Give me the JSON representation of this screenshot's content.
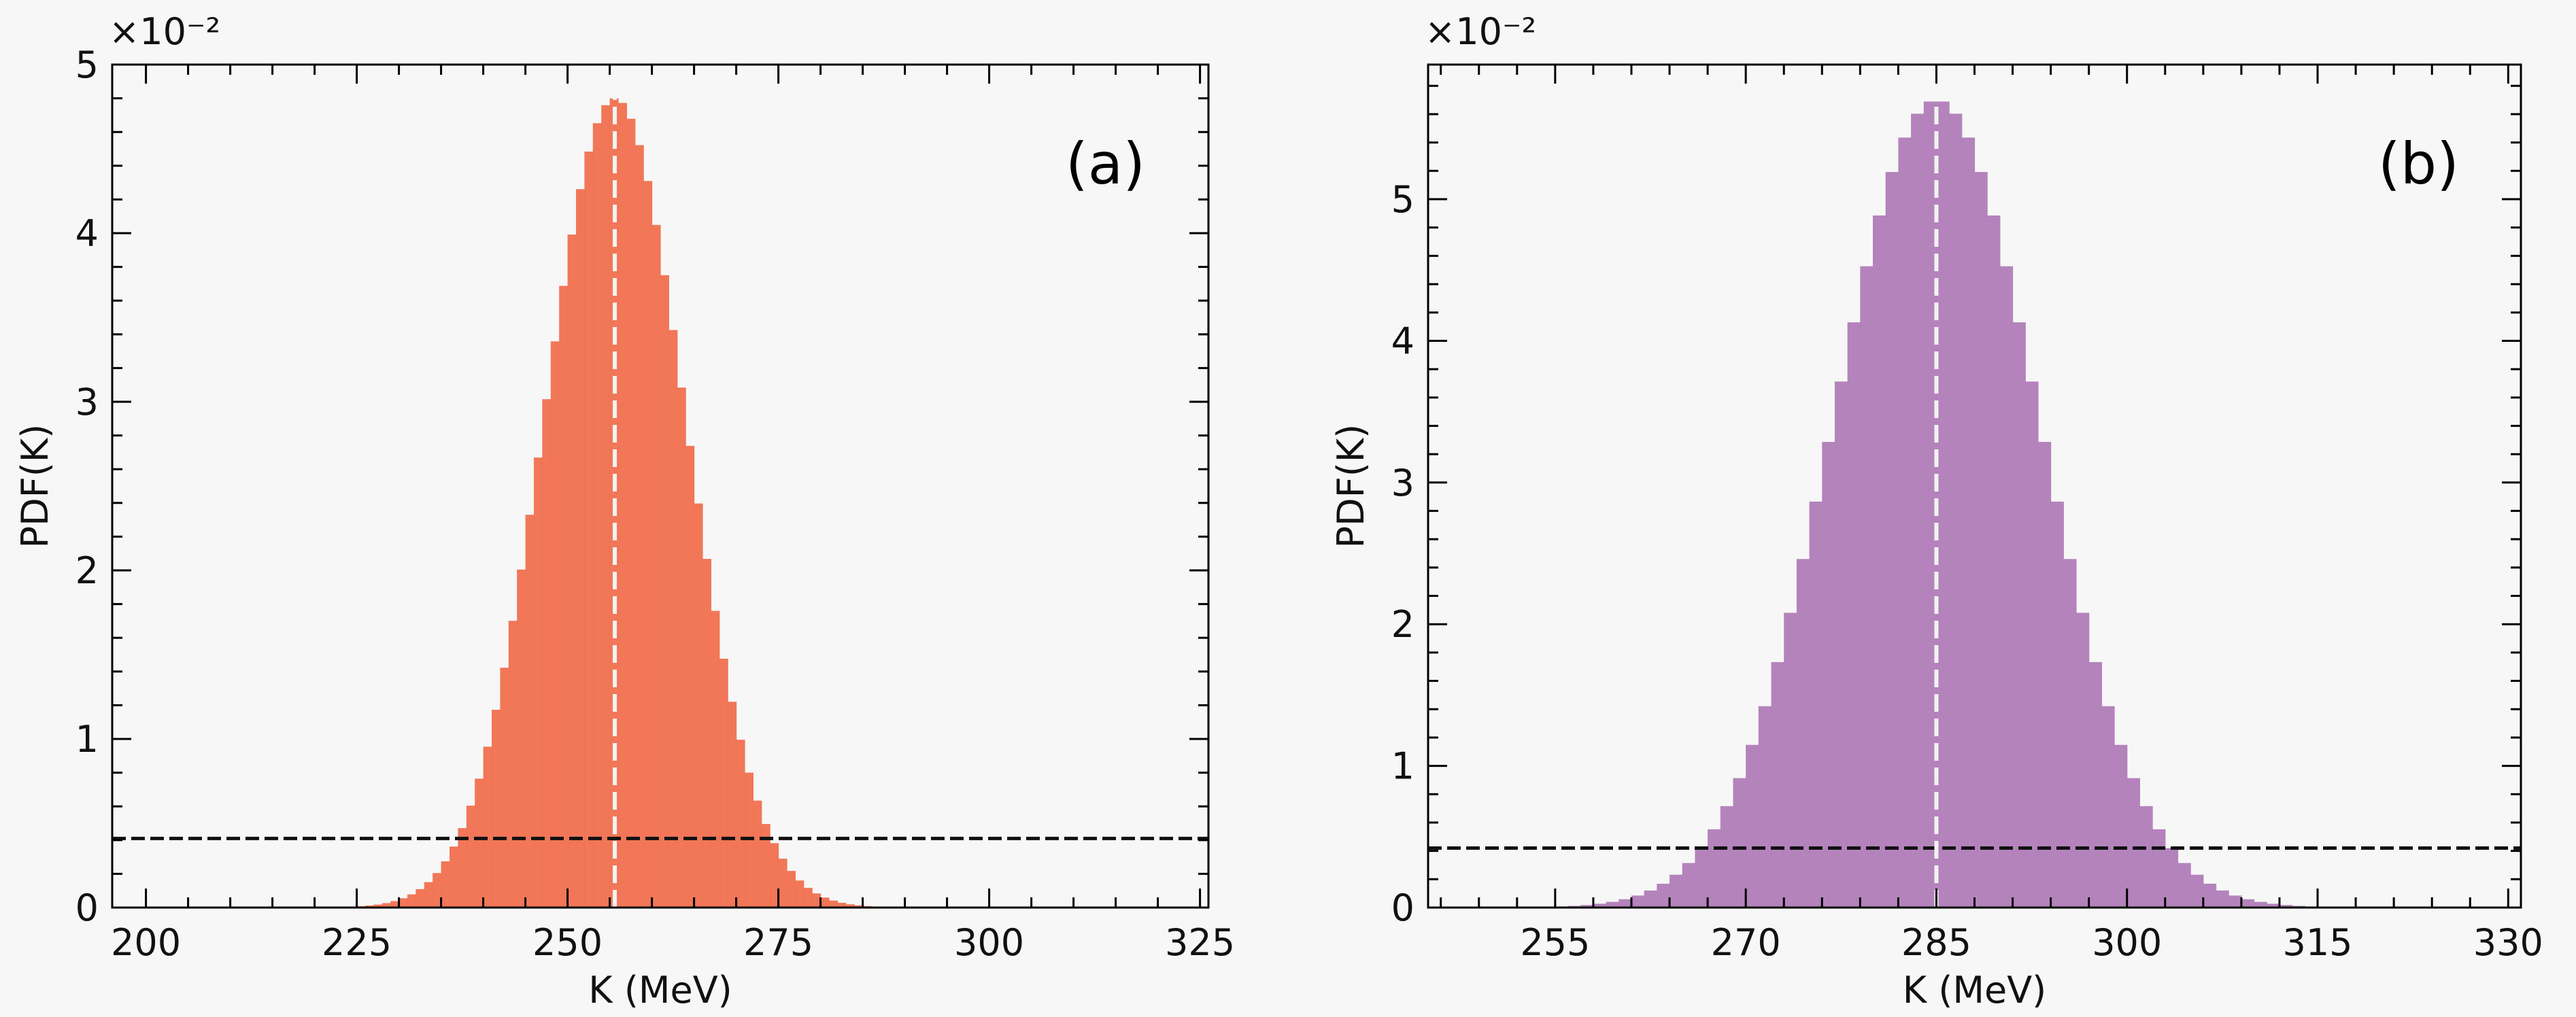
{
  "chart_data": [
    {
      "type": "bar",
      "panel_label": "(a)",
      "title": "",
      "xlabel": "K (MeV)",
      "ylabel": "PDF(K)",
      "y_multiplier": "×10⁻²",
      "xlim": [
        196,
        326
      ],
      "ylim": [
        0,
        5
      ],
      "xticks": [
        200,
        225,
        250,
        275,
        300,
        325
      ],
      "yticks": [
        0,
        1,
        2,
        3,
        4,
        5
      ],
      "distribution": {
        "shape": "gaussian",
        "mean": 255.6,
        "peak": 4.8
      },
      "vertical_line_x": 255.6,
      "horizontal_line_y": 0.41,
      "color": "#f0704f",
      "grid": false,
      "legend": "none"
    },
    {
      "type": "bar",
      "panel_label": "(b)",
      "title": "",
      "xlabel": "K (MeV)",
      "ylabel": "PDF(K)",
      "y_multiplier": "×10⁻²",
      "xlim": [
        245,
        331
      ],
      "ylim": [
        0,
        5.95
      ],
      "xticks": [
        255,
        270,
        285,
        300,
        315,
        330
      ],
      "yticks": [
        0,
        1,
        2,
        3,
        4,
        5
      ],
      "distribution": {
        "shape": "gaussian",
        "mean": 285,
        "peak": 5.7
      },
      "vertical_line_x": 285,
      "horizontal_line_y": 0.42,
      "color": "#b07cb8",
      "grid": false,
      "legend": "none"
    }
  ]
}
